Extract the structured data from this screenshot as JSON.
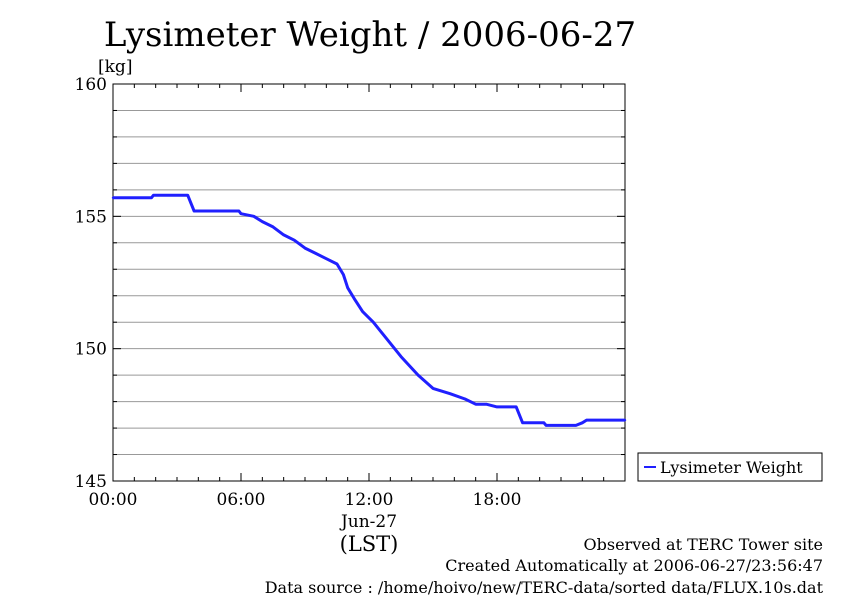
{
  "chart_data": {
    "type": "line",
    "title": "Lysimeter Weight / 2006-06-27",
    "ylabel": "[kg]",
    "ylim": [
      145,
      160
    ],
    "yticks": [
      {
        "value": 160,
        "label": "160"
      },
      {
        "value": 155,
        "label": "155"
      },
      {
        "value": 150,
        "label": "150"
      },
      {
        "value": 145,
        "label": "145"
      }
    ],
    "xlim": [
      0,
      24
    ],
    "xticks": [
      {
        "value": 0,
        "label": "00:00"
      },
      {
        "value": 6,
        "label": "06:00"
      },
      {
        "value": 12,
        "label": "12:00"
      },
      {
        "value": 18,
        "label": "18:00"
      }
    ],
    "xdate": "Jun-27",
    "xunit": "(LST)",
    "grid": true,
    "legend_position": "right",
    "color": "#2020ff",
    "series": [
      {
        "name": "Lysimeter Weight",
        "x": [
          0,
          1.8,
          1.9,
          3.5,
          3.8,
          5.9,
          6.0,
          6.6,
          7.0,
          7.5,
          8.0,
          8.5,
          9.0,
          9.5,
          10.0,
          10.5,
          10.8,
          11.0,
          11.3,
          11.7,
          12.2,
          12.8,
          13.5,
          14.3,
          15.0,
          15.8,
          16.5,
          17.0,
          17.5,
          18.0,
          18.9,
          19.2,
          20.2,
          20.3,
          21.7,
          22.0,
          22.2,
          24.0
        ],
        "values": [
          155.7,
          155.7,
          155.8,
          155.8,
          155.2,
          155.2,
          155.1,
          155.0,
          154.8,
          154.6,
          154.3,
          154.1,
          153.8,
          153.6,
          153.4,
          153.2,
          152.8,
          152.3,
          151.9,
          151.4,
          151.0,
          150.4,
          149.7,
          149.0,
          148.5,
          148.3,
          148.1,
          147.9,
          147.9,
          147.8,
          147.8,
          147.2,
          147.2,
          147.1,
          147.1,
          147.2,
          147.3,
          147.3
        ]
      }
    ]
  },
  "footer": {
    "observed": "Observed at TERC Tower site",
    "created": "Created Automatically at 2006-06-27/23:56:47",
    "source": "Data source : /home/hoivo/new/TERC-data/sorted  data/FLUX.10s.dat"
  }
}
